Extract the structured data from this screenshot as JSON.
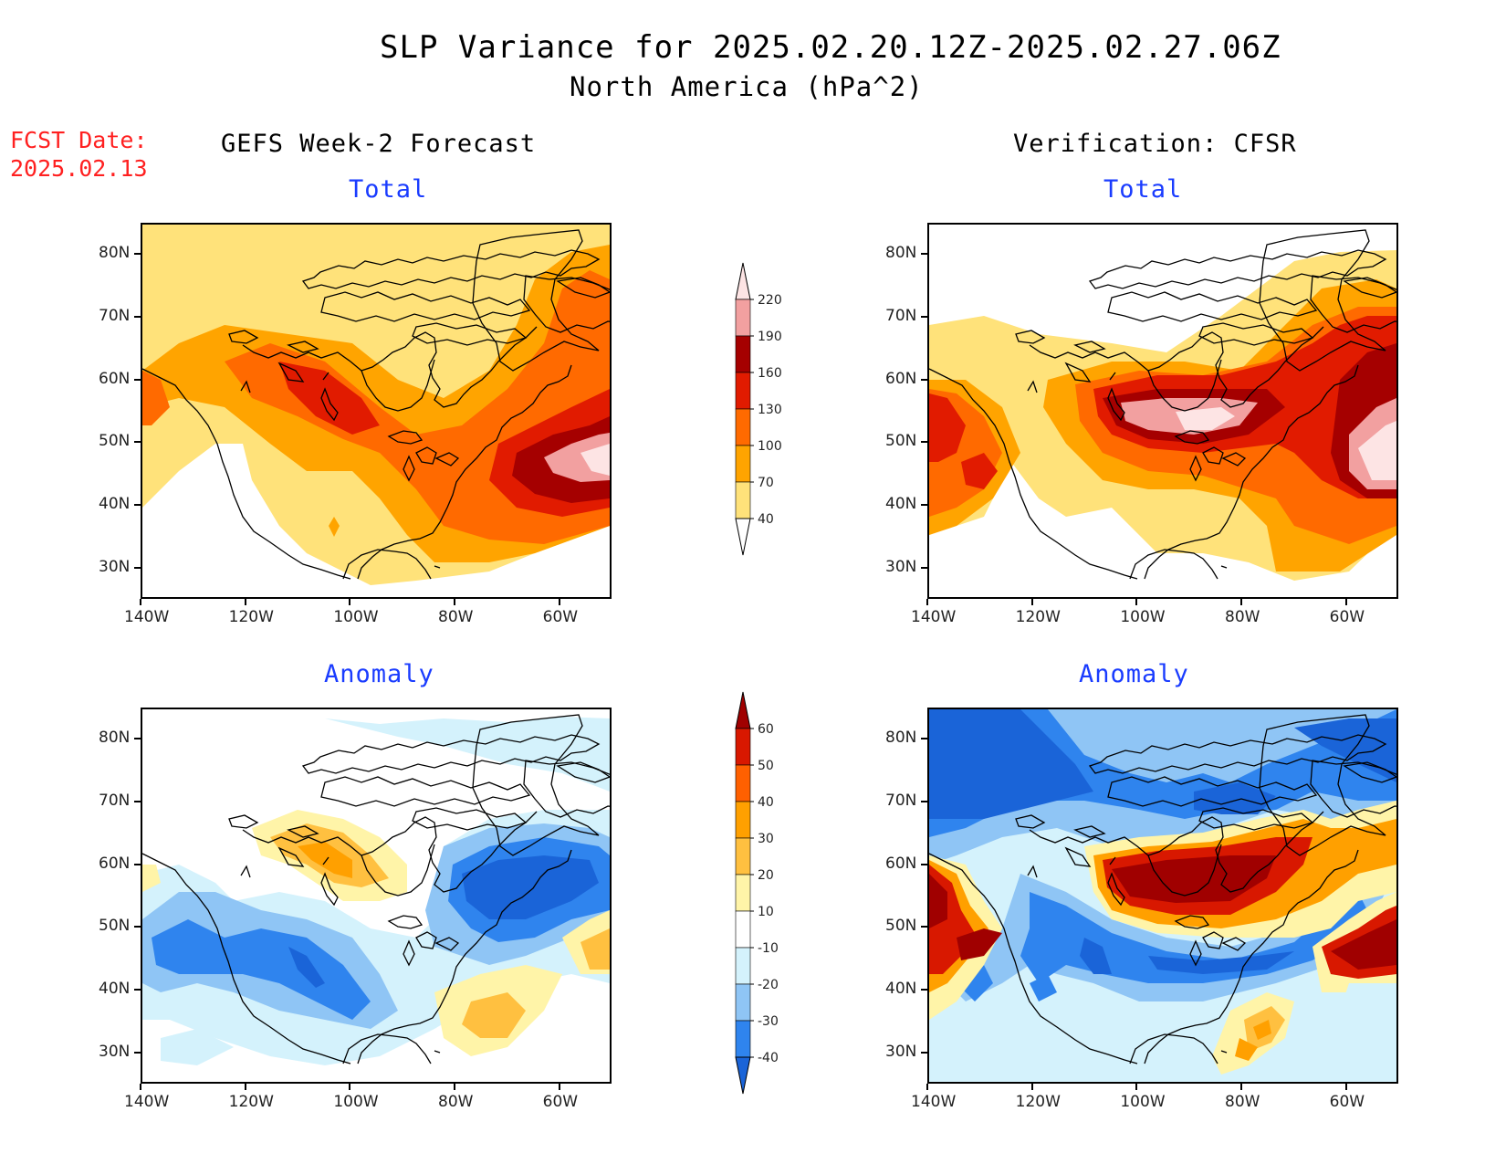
{
  "header": {
    "title": "SLP Variance for 2025.02.20.12Z-2025.02.27.06Z",
    "subtitle": "North America (hPa^2)",
    "fcst_label": "FCST Date:",
    "fcst_date": "2025.02.13"
  },
  "columns": {
    "left": "GEFS Week-2 Forecast",
    "right": "Verification: CFSR"
  },
  "panels": {
    "total_label": "Total",
    "anomaly_label": "Anomaly"
  },
  "axes": {
    "lat_labels": [
      "80N",
      "70N",
      "60N",
      "50N",
      "40N",
      "30N"
    ],
    "lon_labels": [
      "140W",
      "120W",
      "100W",
      "80W",
      "60W"
    ]
  },
  "colorbars": {
    "total": {
      "levels": [
        "40",
        "70",
        "100",
        "130",
        "160",
        "190",
        "220"
      ],
      "colors": [
        "#ffe27a",
        "#ffa400",
        "#ff6a00",
        "#e11b00",
        "#a50000",
        "#f2a0a0",
        "#fde4e4"
      ]
    },
    "anomaly": {
      "levels": [
        "-40",
        "-30",
        "-20",
        "-10",
        "10",
        "20",
        "30",
        "40",
        "50",
        "60"
      ],
      "colors": [
        "#1a64d8",
        "#2f84ee",
        "#8fc5f5",
        "#d4f2fc",
        "#ffffff",
        "#fff4a8",
        "#ffc040",
        "#ffa000",
        "#ff6000",
        "#d81800",
        "#a00000"
      ]
    }
  },
  "chart_data": [
    {
      "type": "heatmap",
      "title": "Total",
      "column": "GEFS Week-2 Forecast",
      "xlabel": "",
      "ylabel": "",
      "xlim": [
        -140,
        -50
      ],
      "ylim": [
        25,
        85
      ],
      "units": "hPa^2"
    },
    {
      "type": "heatmap",
      "title": "Total",
      "column": "Verification: CFSR",
      "xlabel": "",
      "ylabel": "",
      "xlim": [
        -140,
        -50
      ],
      "ylim": [
        25,
        85
      ],
      "units": "hPa^2"
    },
    {
      "type": "heatmap",
      "title": "Anomaly",
      "column": "GEFS Week-2 Forecast",
      "xlabel": "",
      "ylabel": "",
      "xlim": [
        -140,
        -50
      ],
      "ylim": [
        25,
        85
      ],
      "units": "hPa^2"
    },
    {
      "type": "heatmap",
      "title": "Anomaly",
      "column": "Verification: CFSR",
      "xlabel": "",
      "ylabel": "",
      "xlim": [
        -140,
        -50
      ],
      "ylim": [
        25,
        85
      ],
      "units": "hPa^2"
    }
  ]
}
